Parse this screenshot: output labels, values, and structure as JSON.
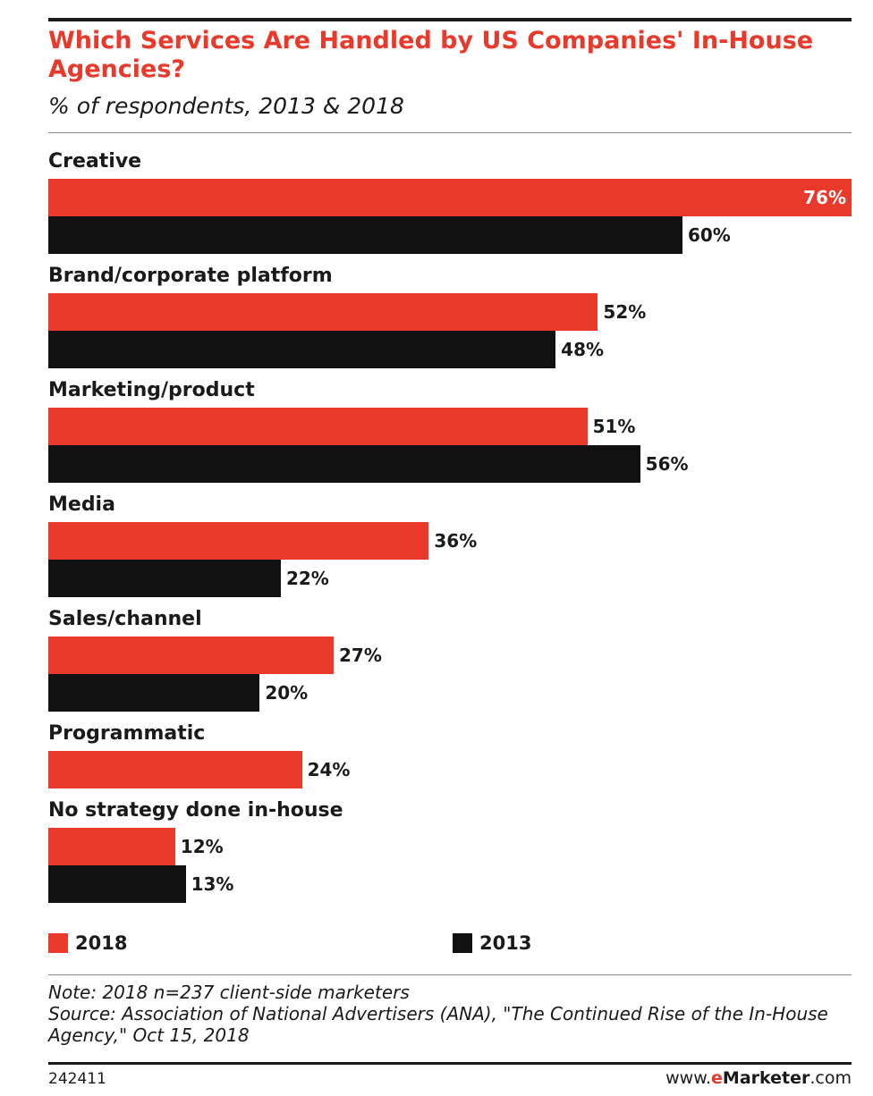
{
  "colors": {
    "series_2018": "#e8392b",
    "series_2013": "#111111",
    "accent": "#e8392b"
  },
  "chart_data": {
    "type": "bar",
    "orientation": "horizontal",
    "title": "Which Services Are Handled by US Companies' In-House Agencies?",
    "subtitle": "% of respondents, 2013 & 2018",
    "categories": [
      "Creative",
      "Brand/corporate platform",
      "Marketing/product",
      "Media",
      "Sales/channel",
      "Programmatic",
      "No strategy done in-house"
    ],
    "series": [
      {
        "name": "2018",
        "values": [
          76,
          52,
          51,
          36,
          27,
          24,
          12
        ]
      },
      {
        "name": "2013",
        "values": [
          60,
          48,
          56,
          22,
          20,
          null,
          13
        ]
      }
    ],
    "value_labels": {
      "2018": [
        "76%",
        "52%",
        "51%",
        "36%",
        "27%",
        "24%",
        "12%"
      ],
      "2013": [
        "60%",
        "48%",
        "56%",
        "22%",
        "20%",
        null,
        "13%"
      ]
    },
    "xlim": [
      0,
      76
    ],
    "grid": false,
    "legend_position": "bottom",
    "note": "Note: 2018 n=237 client-side marketers",
    "source": "Source: Association of National Advertisers (ANA), \"The Continued Rise of the In-House Agency,\" Oct 15, 2018"
  },
  "footer": {
    "chart_id": "242411",
    "site_prefix": "www.",
    "site_brand_e": "e",
    "site_brand_rest": "Marketer",
    "site_suffix": ".com"
  }
}
